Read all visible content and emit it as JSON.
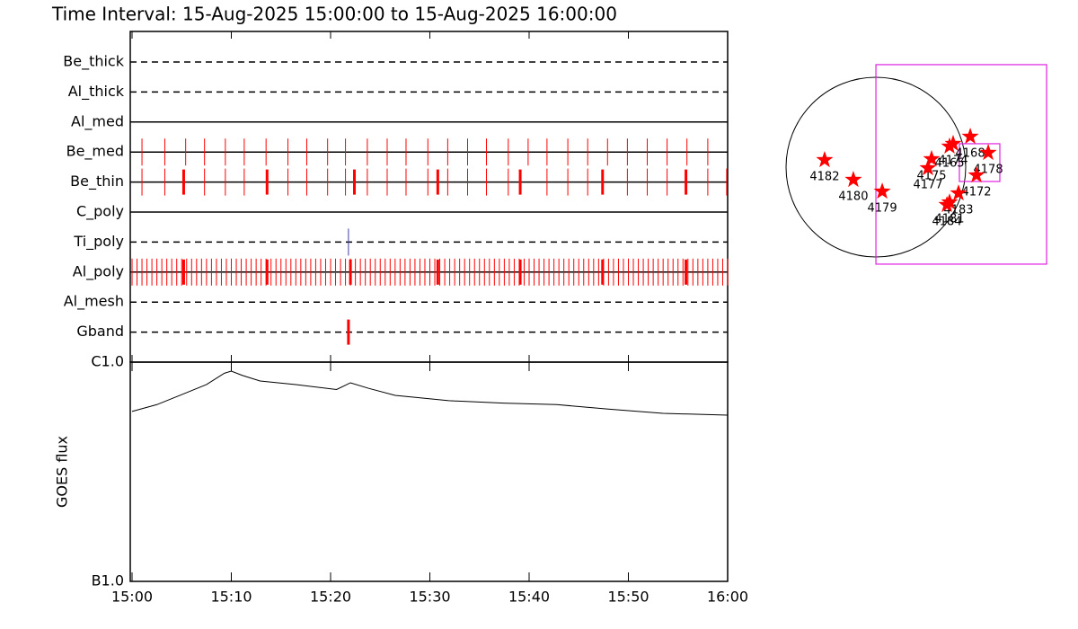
{
  "title": "Time Interval: 15-Aug-2025 15:00:00 to 15-Aug-2025 16:00:00",
  "chart_data": [
    {
      "type": "timeline",
      "xlim": [
        0,
        60
      ],
      "xticks": [
        {
          "value": 0,
          "label": "15:00"
        },
        {
          "value": 10,
          "label": "15:10"
        },
        {
          "value": 20,
          "label": "15:20"
        },
        {
          "value": 30,
          "label": "15:30"
        },
        {
          "value": 40,
          "label": "15:40"
        },
        {
          "value": 50,
          "label": "15:50"
        },
        {
          "value": 60,
          "label": "16:00"
        }
      ],
      "series": [
        {
          "name": "Be_thick",
          "line_style": "dashed",
          "color": "#ff0000",
          "events": [],
          "wide_events": []
        },
        {
          "name": "Al_thick",
          "line_style": "dashed",
          "color": "#ff0000",
          "events": [],
          "wide_events": []
        },
        {
          "name": "Al_med",
          "line_style": "solid",
          "color": "#ff0000",
          "events": [],
          "wide_events": []
        },
        {
          "name": "Be_med",
          "line_style": "solid",
          "color": "#ff0000",
          "events": [
            1.0,
            3.3,
            5.4,
            7.3,
            9.4,
            11.3,
            13.5,
            15.7,
            17.6,
            19.7,
            21.5,
            23.7,
            25.7,
            27.6,
            29.8,
            31.8,
            33.8,
            35.7,
            37.9,
            39.9,
            41.8,
            43.9,
            45.9,
            47.9,
            49.9,
            51.9,
            53.9,
            55.9,
            58.0
          ],
          "wide_events": []
        },
        {
          "name": "Be_thin",
          "line_style": "solid",
          "color": "#ff0000",
          "events": [
            1.0,
            3.3,
            7.3,
            9.4,
            11.3,
            15.7,
            17.6,
            19.7,
            21.5,
            23.7,
            25.7,
            27.6,
            29.8,
            31.8,
            33.8,
            35.7,
            37.9,
            41.8,
            43.9,
            45.9,
            49.9,
            51.9,
            53.9,
            58.0,
            59.9
          ],
          "wide_events": [
            5.2,
            13.6,
            22.4,
            30.8,
            39.1,
            47.4,
            55.8
          ]
        },
        {
          "name": "C_poly",
          "line_style": "solid",
          "color": "#ff0000",
          "events": [],
          "wide_events": []
        },
        {
          "name": "Ti_poly",
          "line_style": "dashed",
          "color": "#4040a0",
          "events": [
            21.8
          ],
          "wide_events": []
        },
        {
          "name": "Al_poly",
          "line_style": "solid",
          "color": "#ff0000",
          "events": [
            0,
            0.5,
            1,
            1.5,
            2,
            2.5,
            3,
            3.5,
            4,
            4.5,
            5,
            5.5,
            6,
            6.5,
            7,
            7.5,
            8,
            8.5,
            9,
            9.5,
            10,
            10.5,
            11,
            11.5,
            12,
            12.5,
            13,
            13.5,
            14,
            14.5,
            15,
            15.5,
            16,
            16.5,
            17,
            17.5,
            18,
            18.5,
            19,
            19.5,
            20,
            20.5,
            21,
            21.5,
            22,
            22.5,
            23,
            23.5,
            24,
            24.5,
            25,
            25.5,
            26,
            26.5,
            27,
            27.5,
            28,
            28.5,
            29,
            29.5,
            30,
            30.5,
            31,
            31.5,
            32,
            32.5,
            33,
            33.5,
            34,
            34.5,
            35,
            35.5,
            36,
            36.5,
            37,
            37.5,
            38,
            38.5,
            39,
            39.5,
            40,
            40.5,
            41,
            41.5,
            42,
            42.5,
            43,
            43.5,
            44,
            44.5,
            45,
            45.5,
            46,
            46.5,
            47,
            47.5,
            48,
            48.5,
            49,
            49.5,
            50,
            50.5,
            51,
            51.5,
            52,
            52.5,
            53,
            53.5,
            54,
            54.5,
            55,
            55.5,
            56,
            56.5,
            57,
            57.5,
            58,
            58.5,
            59,
            59.5,
            60
          ],
          "wide_events": [
            5.2,
            13.6,
            22.0,
            30.8,
            39.1,
            47.4,
            55.8
          ]
        },
        {
          "name": "Al_mesh",
          "line_style": "dashed",
          "color": "#ff0000",
          "events": [],
          "wide_events": []
        },
        {
          "name": "Gband",
          "line_style": "dashed",
          "color": "#ff0000",
          "events": [],
          "wide_events": [
            21.8
          ]
        }
      ]
    },
    {
      "type": "line",
      "y_label": "GOES flux",
      "log_scale": true,
      "color": "#000000",
      "xlim": [
        0,
        60
      ],
      "xticks": [
        {
          "value": 0,
          "label": "15:00"
        },
        {
          "value": 10,
          "label": "15:10"
        },
        {
          "value": 20,
          "label": "15:20"
        },
        {
          "value": 30,
          "label": "15:30"
        },
        {
          "value": 40,
          "label": "15:40"
        },
        {
          "value": 50,
          "label": "15:50"
        },
        {
          "value": 60,
          "label": "16:00"
        }
      ],
      "ylim": [
        1e-07,
        1e-06
      ],
      "yticks": [
        {
          "value": 1e-07,
          "label": "B1.0"
        },
        {
          "value": 1e-06,
          "label": "C1.0"
        }
      ],
      "x": [
        0,
        2.5,
        4.8,
        7.5,
        9.3,
        10.0,
        11.1,
        12.9,
        16.5,
        20.6,
        22.0,
        23.8,
        26.5,
        31.9,
        37.4,
        42.8,
        48.1,
        53.5,
        60
      ],
      "values": [
        5.96e-07,
        6.4e-07,
        7.05e-07,
        7.9e-07,
        8.9e-07,
        9.1e-07,
        8.7e-07,
        8.2e-07,
        7.9e-07,
        7.5e-07,
        8.05e-07,
        7.6e-07,
        7.05e-07,
        6.67e-07,
        6.5e-07,
        6.4e-07,
        6.1e-07,
        5.84e-07,
        5.73e-07
      ]
    },
    {
      "type": "scatter",
      "color": "#ff0000",
      "fov_color": "#e020e0",
      "labels": [
        "4182",
        "4180",
        "4179",
        "4175",
        "4177",
        "4165",
        "4174",
        "4168",
        "4178",
        "4172",
        "4183",
        "4181",
        "4184"
      ],
      "x": [
        -542,
        -238,
        67,
        589,
        551,
        779,
        817,
        998,
        1188,
        1064,
        874,
        779,
        751
      ],
      "values": [
        76,
        -133,
        -257,
        86,
        -10,
        219,
        247,
        323,
        152,
        -86,
        -276,
        -371,
        -399
      ],
      "fovs": [
        {
          "x": 903,
          "y": 29,
          "width": 1805,
          "height": 2109
        },
        {
          "x": 1097,
          "y": 48,
          "width": 428,
          "height": 399
        }
      ]
    }
  ]
}
